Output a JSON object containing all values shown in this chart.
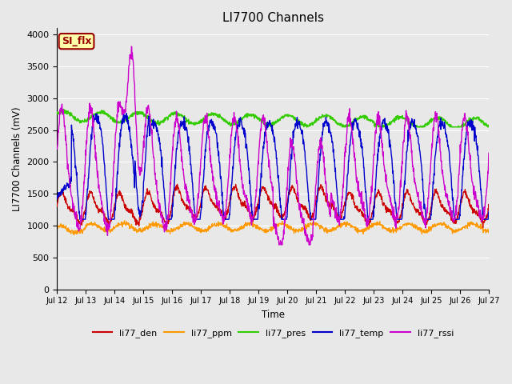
{
  "title": "LI7700 Channels",
  "xlabel": "Time",
  "ylabel": "LI7700 Channels (mV)",
  "ylim": [
    0,
    4100
  ],
  "yticks": [
    0,
    500,
    1000,
    1500,
    2000,
    2500,
    3000,
    3500,
    4000
  ],
  "xstart": 12,
  "xend": 27,
  "xtick_labels": [
    "Jul 12",
    "Jul 13",
    "Jul 14",
    "Jul 15",
    "Jul 16",
    "Jul 17",
    "Jul 18",
    "Jul 19",
    "Jul 20",
    "Jul 21",
    "Jul 22",
    "Jul 23",
    "Jul 24",
    "Jul 25",
    "Jul 26",
    "Jul 27"
  ],
  "colors": {
    "li77_den": "#cc0000",
    "li77_ppm": "#ff9900",
    "li77_pres": "#33cc00",
    "li77_temp": "#0000cc",
    "li77_rssi": "#cc00cc"
  },
  "legend_labels": [
    "li77_den",
    "li77_ppm",
    "li77_pres",
    "li77_temp",
    "li77_rssi"
  ],
  "fig_bg_color": "#e8e8e8",
  "plot_bg_color": "#e8e8e8",
  "annotation_text": "SI_flx",
  "annotation_bg": "#ffffaa",
  "annotation_fg": "#990000"
}
